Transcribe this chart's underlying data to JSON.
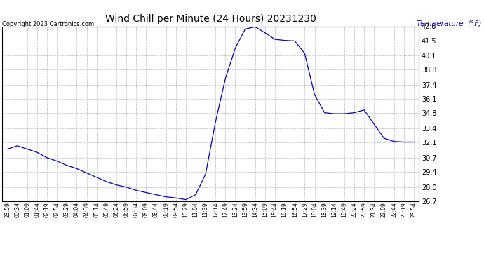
{
  "title": "Wind Chill per Minute (24 Hours) 20231230",
  "ylabel": "Temperature  (°F)",
  "copyright": "Copyright 2023 Cartronics.com",
  "line_color": "#0000cc",
  "ylabel_color": "#0000cc",
  "background_color": "#ffffff",
  "grid_color": "#bbbbbb",
  "ylim": [
    26.7,
    42.8
  ],
  "yticks": [
    26.7,
    28.0,
    29.4,
    30.7,
    32.1,
    33.4,
    34.8,
    36.1,
    37.4,
    38.8,
    40.1,
    41.5,
    42.8
  ],
  "x_labels": [
    "23:59",
    "00:34",
    "01:09",
    "01:44",
    "02:19",
    "02:54",
    "03:29",
    "04:04",
    "04:39",
    "05:14",
    "05:49",
    "06:24",
    "06:59",
    "07:34",
    "08:09",
    "08:44",
    "09:19",
    "09:54",
    "10:29",
    "11:04",
    "11:39",
    "12:14",
    "12:49",
    "13:24",
    "13:59",
    "14:34",
    "15:09",
    "15:44",
    "16:19",
    "16:54",
    "17:29",
    "18:04",
    "18:39",
    "19:14",
    "19:49",
    "20:24",
    "20:59",
    "21:34",
    "22:09",
    "22:44",
    "23:19",
    "23:54"
  ],
  "data_x": [
    0,
    1,
    2,
    3,
    4,
    5,
    6,
    7,
    8,
    9,
    10,
    11,
    12,
    13,
    14,
    15,
    16,
    17,
    18,
    19,
    20,
    21,
    22,
    23,
    24,
    25,
    26,
    27,
    28,
    29,
    30,
    31,
    32,
    33,
    34,
    35,
    36,
    37,
    38,
    39,
    40,
    41
  ],
  "data_y": [
    31.5,
    31.8,
    31.5,
    31.2,
    30.7,
    30.4,
    30.0,
    29.7,
    29.3,
    28.9,
    28.5,
    28.2,
    28.0,
    27.7,
    27.5,
    27.3,
    27.1,
    27.0,
    26.85,
    27.3,
    29.2,
    34.0,
    38.0,
    40.8,
    42.55,
    42.75,
    42.2,
    41.6,
    41.5,
    41.45,
    40.3,
    36.5,
    34.85,
    34.75,
    34.75,
    34.85,
    35.1,
    33.8,
    32.5,
    32.2,
    32.15,
    32.15
  ]
}
